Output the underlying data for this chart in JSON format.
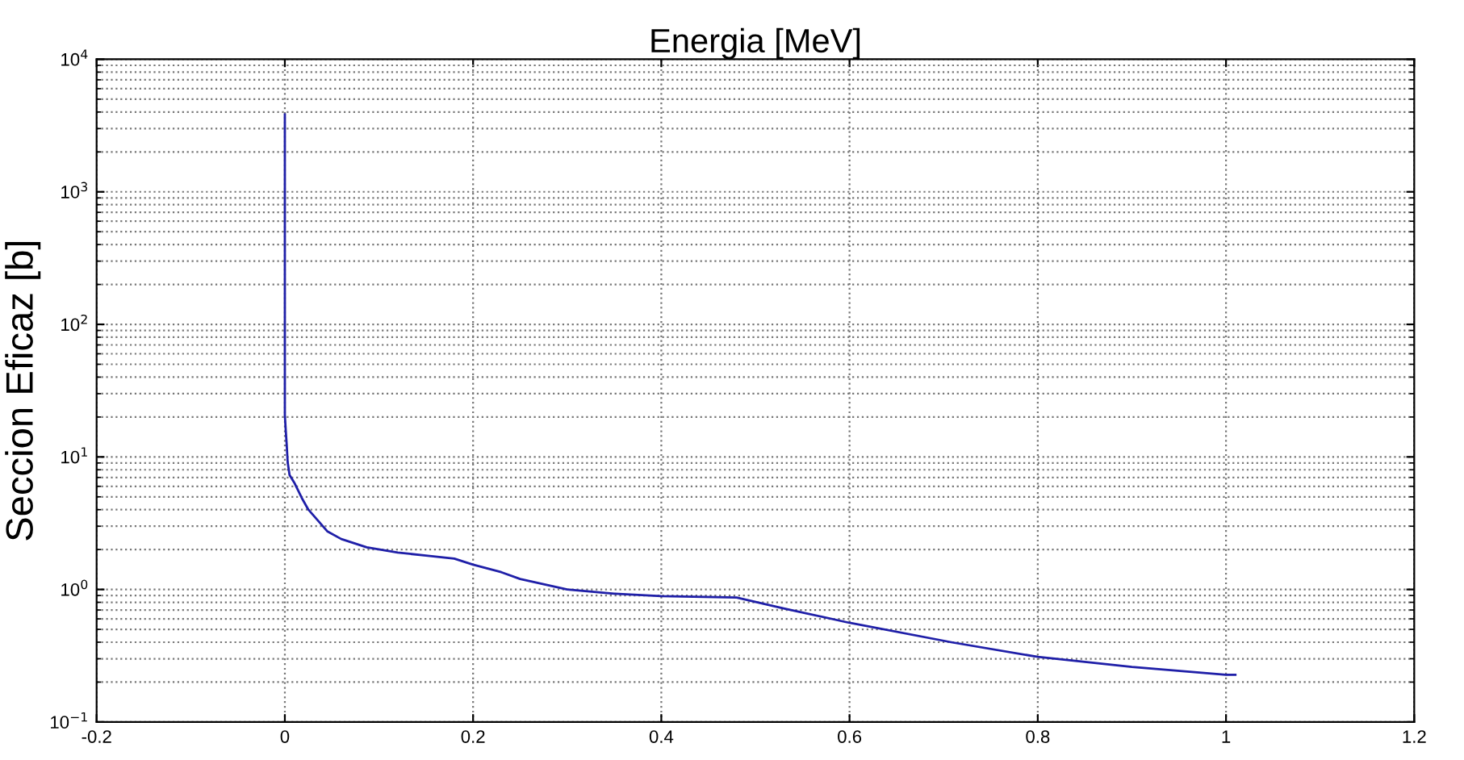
{
  "chart_data": {
    "type": "line",
    "title": "Energia [MeV]",
    "ylabel": "Seccion Eficaz [b]",
    "series": [
      {
        "color": "#1f1fa8",
        "x": [
          0,
          0,
          0,
          0,
          0,
          0,
          0,
          0,
          0,
          0,
          0,
          0.001,
          0.002,
          0.003,
          0.005,
          0.01,
          0.018,
          0.025,
          0.045,
          0.06,
          0.087,
          0.12,
          0.15,
          0.18,
          0.2,
          0.23,
          0.25,
          0.3,
          0.35,
          0.4,
          0.48,
          0.53,
          0.6,
          0.708,
          0.8,
          0.9,
          1.0,
          1.01
        ],
        "values": [
          3840,
          200,
          50,
          45,
          38,
          34,
          30,
          28,
          25,
          22,
          20.7,
          15.7,
          12.3,
          9.1,
          7.3,
          6.4,
          4.9,
          4.0,
          2.75,
          2.4,
          2.08,
          1.9,
          1.8,
          1.71,
          1.54,
          1.35,
          1.2,
          1.0,
          0.93,
          0.89,
          0.87,
          0.72,
          0.56,
          0.4,
          0.31,
          0.26,
          0.227,
          0.227
        ]
      }
    ],
    "log": "y",
    "xlim": [
      -0.2,
      1.2
    ],
    "xticks": [
      -0.2,
      0,
      0.2,
      0.4,
      0.6,
      0.8,
      1,
      1.2
    ],
    "ylim": [
      0.1,
      10000
    ],
    "yticks": [
      {
        "value": 0.1,
        "label": "10$^{−1}$"
      },
      {
        "value": 1,
        "label": "10$^{0}$"
      },
      {
        "value": 10,
        "label": "10$^{1}$"
      },
      {
        "value": 100,
        "label": "10$^{2}$"
      },
      {
        "value": 1000,
        "label": "10$^{3}$"
      },
      {
        "value": 10000,
        "label": "10$^{4}$"
      }
    ],
    "grid": true,
    "line_style": "solid"
  }
}
